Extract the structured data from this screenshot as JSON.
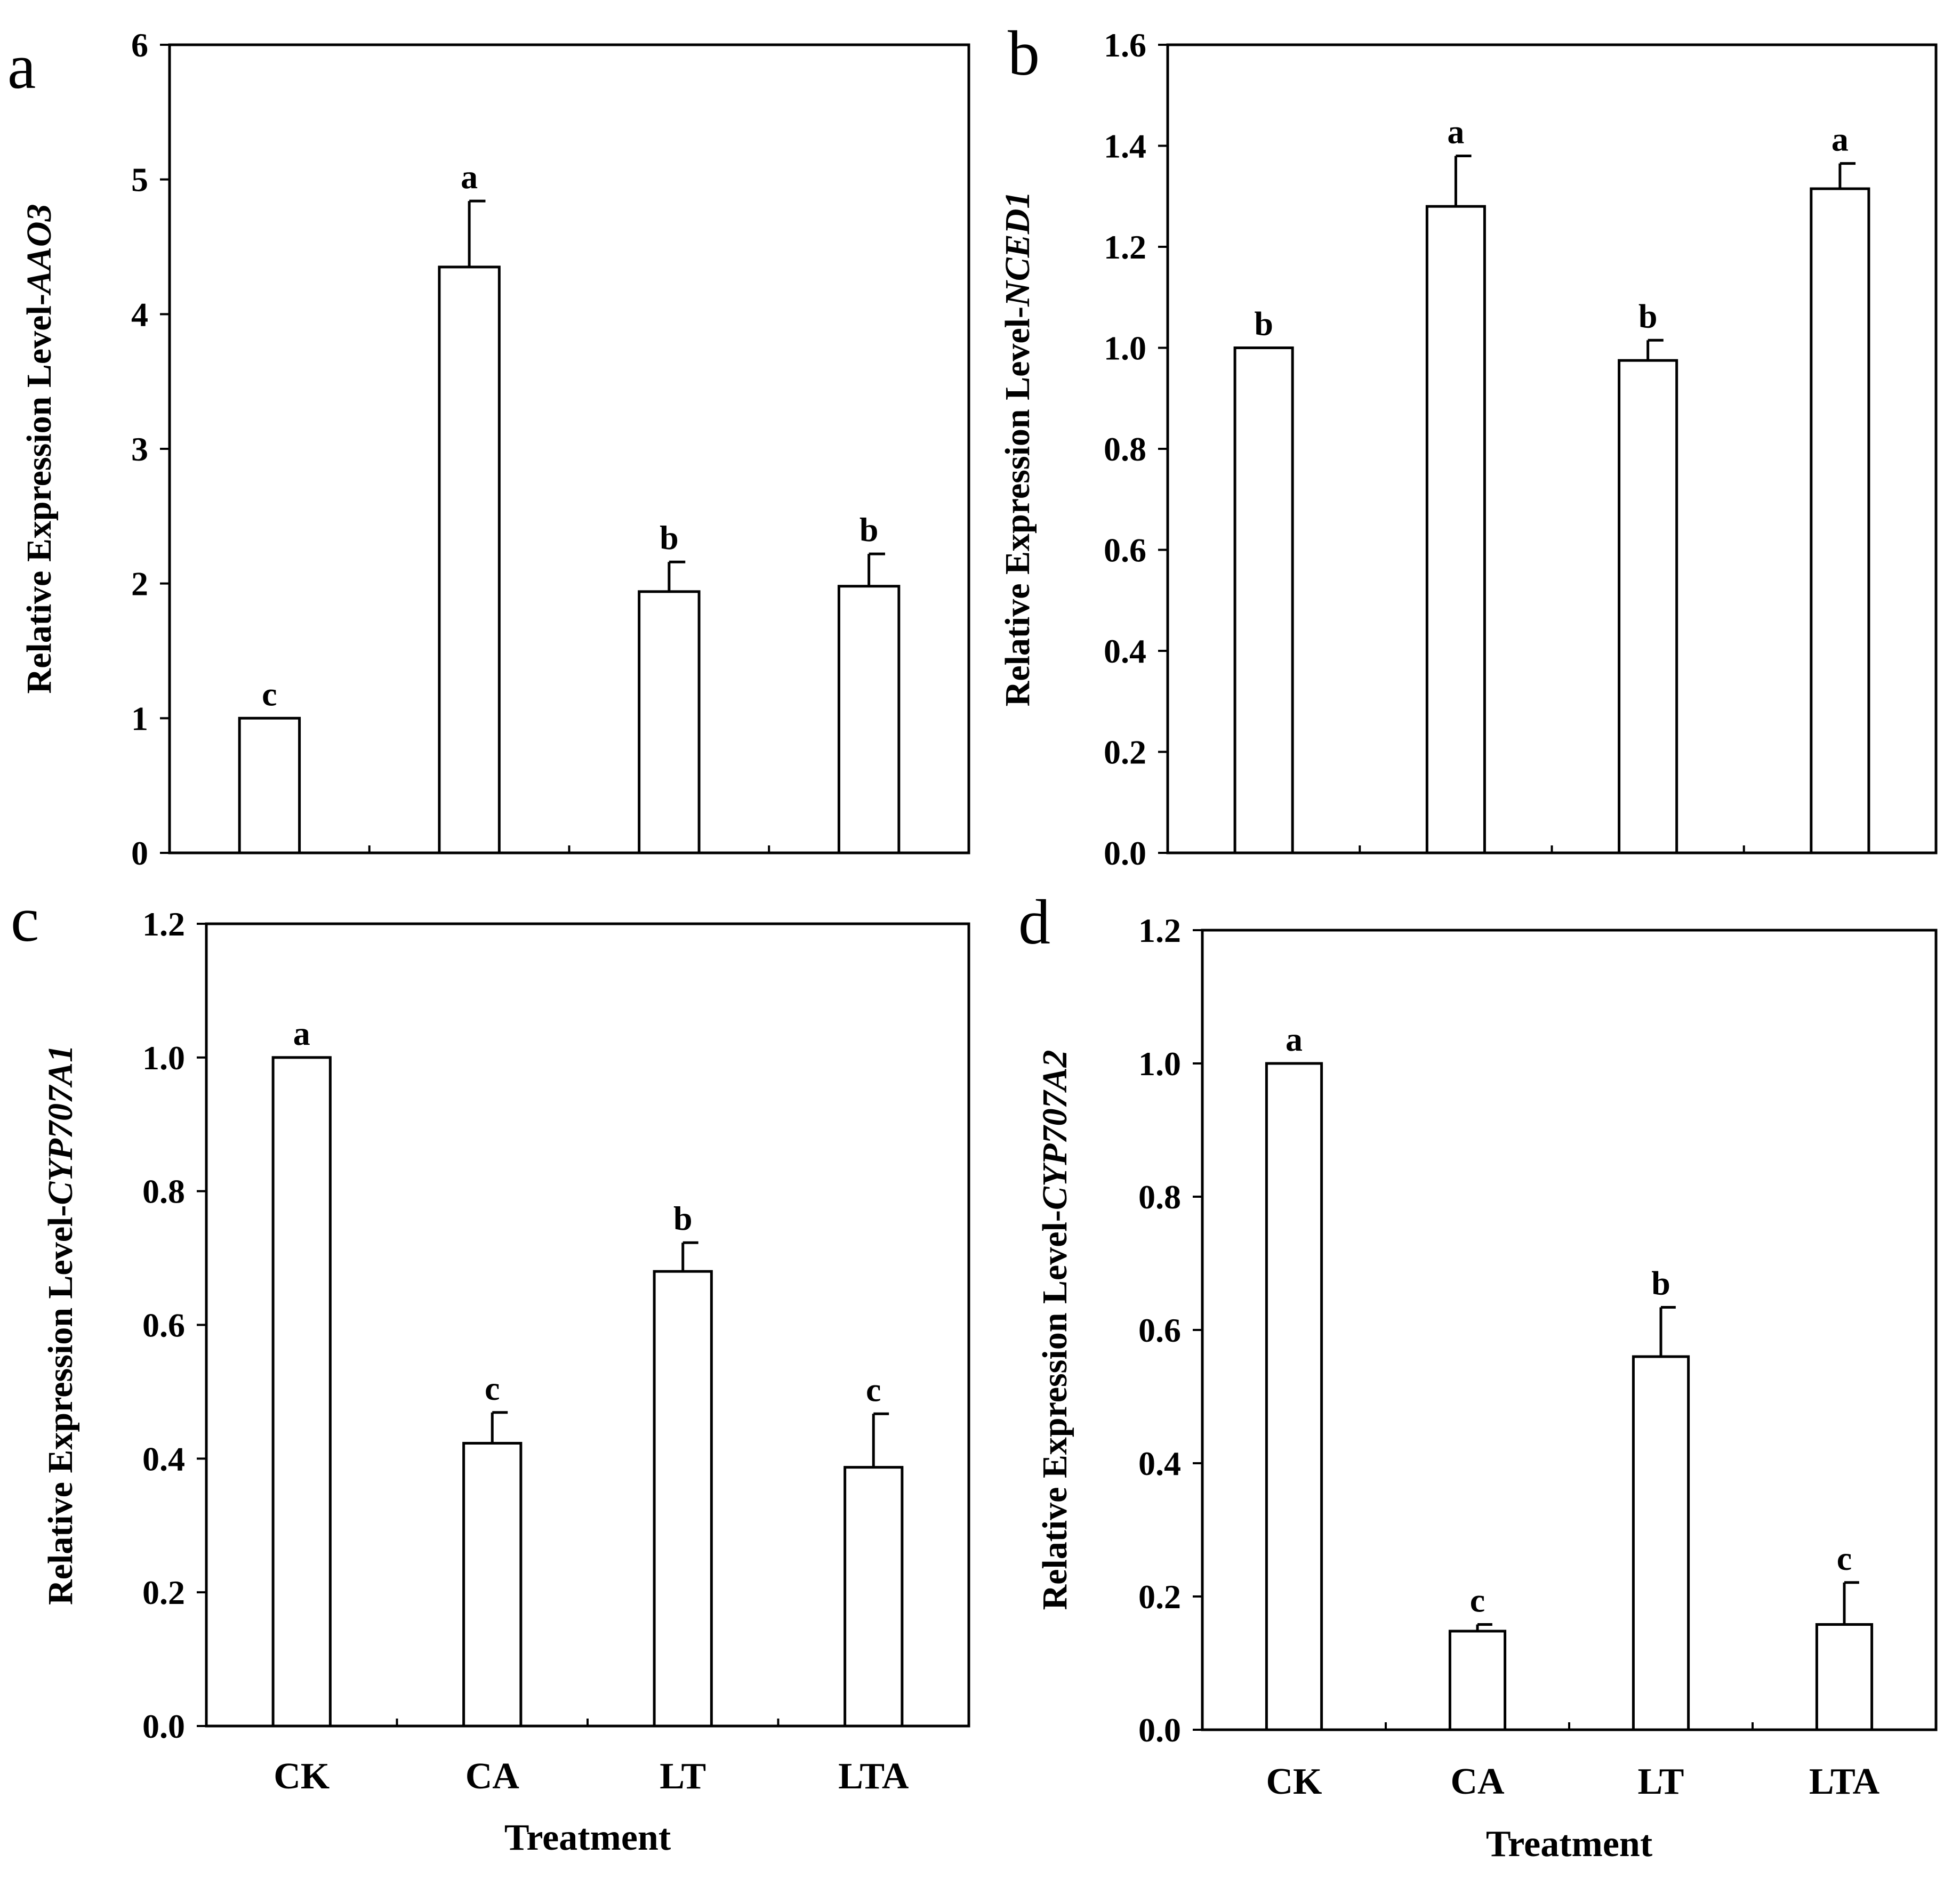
{
  "x_axis_title": "Treatment",
  "chart_data": [
    {
      "type": "bar",
      "panel": "a",
      "ylabel_prefix": "Relative Expression Level-",
      "ylabel_gene": "AAO3",
      "categories": [
        "CK",
        "CA",
        "LT",
        "LTA"
      ],
      "values": [
        1.0,
        4.35,
        1.94,
        1.98
      ],
      "errors": [
        0.0,
        0.49,
        0.22,
        0.24
      ],
      "significance": [
        "c",
        "a",
        "b",
        "b"
      ],
      "ylim": [
        0,
        6
      ],
      "yticks": [
        0,
        1,
        2,
        3,
        4,
        5,
        6
      ],
      "ytick_labels": [
        "0",
        "1",
        "2",
        "3",
        "4",
        "5",
        "6"
      ],
      "show_x_labels": false
    },
    {
      "type": "bar",
      "panel": "b",
      "ylabel_prefix": "Relative Expression Level-",
      "ylabel_gene": "NCED1",
      "categories": [
        "CK",
        "CA",
        "LT",
        "LTA"
      ],
      "values": [
        1.0,
        1.28,
        0.975,
        1.315
      ],
      "errors": [
        0.0,
        0.1,
        0.04,
        0.05
      ],
      "significance": [
        "b",
        "a",
        "b",
        "a"
      ],
      "ylim": [
        0,
        1.6
      ],
      "yticks": [
        0,
        0.2,
        0.4,
        0.6,
        0.8,
        1.0,
        1.2,
        1.4,
        1.6
      ],
      "ytick_labels": [
        "0.0",
        "0.2",
        "0.4",
        "0.6",
        "0.8",
        "1.0",
        "1.2",
        "1.4",
        "1.6"
      ],
      "show_x_labels": false
    },
    {
      "type": "bar",
      "panel": "c",
      "ylabel_prefix": "Relative Expression Level-",
      "ylabel_gene": "CYP707A1",
      "categories": [
        "CK",
        "CA",
        "LT",
        "LTA"
      ],
      "values": [
        1.0,
        0.423,
        0.68,
        0.387
      ],
      "errors": [
        0.0,
        0.046,
        0.043,
        0.08
      ],
      "significance": [
        "a",
        "c",
        "b",
        "c"
      ],
      "ylim": [
        0,
        1.2
      ],
      "yticks": [
        0,
        0.2,
        0.4,
        0.6,
        0.8,
        1.0,
        1.2
      ],
      "ytick_labels": [
        "0.0",
        "0.2",
        "0.4",
        "0.6",
        "0.8",
        "1.0",
        "1.2"
      ],
      "show_x_labels": true
    },
    {
      "type": "bar",
      "panel": "d",
      "ylabel_prefix": "Relative Expression Level-",
      "ylabel_gene": "CYP707A2",
      "categories": [
        "CK",
        "CA",
        "LT",
        "LTA"
      ],
      "values": [
        1.0,
        0.148,
        0.56,
        0.158
      ],
      "errors": [
        0.0,
        0.01,
        0.074,
        0.063
      ],
      "significance": [
        "a",
        "c",
        "b",
        "c"
      ],
      "ylim": [
        0,
        1.2
      ],
      "yticks": [
        0,
        0.2,
        0.4,
        0.6,
        0.8,
        1.0,
        1.2
      ],
      "ytick_labels": [
        "0.0",
        "0.2",
        "0.4",
        "0.6",
        "0.8",
        "1.0",
        "1.2"
      ],
      "show_x_labels": true
    }
  ]
}
